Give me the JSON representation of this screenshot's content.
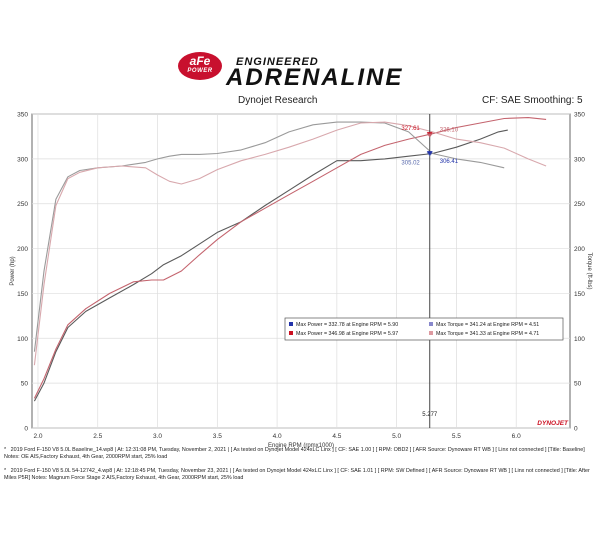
{
  "logo": {
    "badge_top": "aFe",
    "badge_bottom": "POWER",
    "tagline": "ENGINEERED",
    "name": "ADRENALINE"
  },
  "header": {
    "left": "Dynojet Research",
    "right": "CF: SAE Smoothing: 5"
  },
  "colors": {
    "baseline_power": "#5a5a5a",
    "baseline_torque": "#9a9a9a",
    "stage2_power": "#c4646e",
    "stage2_torque": "#d8a8ad",
    "cursor": "#333333",
    "blue_marker": "#2233aa",
    "red_marker": "#cc1122"
  },
  "chart_data": {
    "type": "line",
    "xlabel": "Engine RPM (rpmx1000)",
    "ylabel": "Power (hp)",
    "y2label": "Torque (ft-lbs)",
    "xlim": [
      1.95,
      6.45
    ],
    "ylim": [
      0,
      350
    ],
    "y2lim": [
      0,
      350
    ],
    "x_ticks": [
      "2.0",
      "2.5",
      "3.0",
      "3.5",
      "4.0",
      "4.5",
      "5.0",
      "5.5",
      "6.0"
    ],
    "y_ticks": [
      "0",
      "50",
      "100",
      "150",
      "200",
      "250",
      "300",
      "350"
    ],
    "grid": true,
    "series": [
      {
        "role": "baseline_power",
        "axis": "left",
        "x": [
          1.97,
          2.05,
          2.15,
          2.25,
          2.4,
          2.6,
          2.8,
          2.95,
          3.05,
          3.2,
          3.35,
          3.5,
          3.7,
          3.9,
          4.1,
          4.3,
          4.5,
          4.7,
          4.9,
          5.1,
          5.3,
          5.5,
          5.7,
          5.85,
          5.93
        ],
        "y": [
          30,
          50,
          85,
          112,
          130,
          145,
          160,
          172,
          182,
          192,
          205,
          218,
          230,
          248,
          265,
          282,
          298,
          298,
          300,
          303,
          306,
          313,
          322,
          330,
          332
        ]
      },
      {
        "role": "stage2_power",
        "axis": "left",
        "x": [
          1.97,
          2.05,
          2.15,
          2.25,
          2.4,
          2.6,
          2.8,
          2.95,
          3.05,
          3.2,
          3.35,
          3.5,
          3.7,
          3.9,
          4.1,
          4.3,
          4.5,
          4.7,
          4.9,
          5.1,
          5.3,
          5.5,
          5.7,
          5.9,
          6.1,
          6.25
        ],
        "y": [
          33,
          55,
          88,
          115,
          133,
          150,
          163,
          165,
          165,
          175,
          193,
          210,
          230,
          245,
          260,
          275,
          290,
          305,
          315,
          322,
          328,
          335,
          340,
          345,
          346,
          344
        ]
      },
      {
        "role": "baseline_torque",
        "axis": "right",
        "x": [
          1.97,
          2.05,
          2.15,
          2.25,
          2.35,
          2.5,
          2.7,
          2.9,
          3.0,
          3.1,
          3.2,
          3.35,
          3.5,
          3.7,
          3.9,
          4.1,
          4.3,
          4.5,
          4.7,
          4.9,
          5.1,
          5.3,
          5.5,
          5.7,
          5.9
        ],
        "y": [
          85,
          175,
          255,
          280,
          287,
          290,
          292,
          296,
          300,
          303,
          305,
          305,
          306,
          310,
          318,
          330,
          338,
          341,
          341,
          340,
          330,
          306,
          300,
          296,
          290
        ]
      },
      {
        "role": "stage2_torque",
        "axis": "right",
        "x": [
          1.97,
          2.05,
          2.15,
          2.25,
          2.35,
          2.5,
          2.7,
          2.9,
          3.0,
          3.1,
          3.2,
          3.35,
          3.5,
          3.7,
          3.9,
          4.1,
          4.3,
          4.5,
          4.7,
          4.9,
          5.1,
          5.3,
          5.5,
          5.7,
          5.9,
          6.1,
          6.25
        ],
        "y": [
          70,
          160,
          248,
          278,
          285,
          290,
          292,
          290,
          282,
          275,
          272,
          278,
          288,
          298,
          305,
          313,
          322,
          332,
          340,
          341,
          337,
          330,
          322,
          318,
          312,
          300,
          292
        ]
      }
    ],
    "cursor": {
      "x": 5.277,
      "label": "5.277"
    },
    "cursor_values": [
      {
        "value": "327.61",
        "y": 327.61,
        "color": "#cc1122",
        "side": "left",
        "dy": -4
      },
      {
        "value": "326.10",
        "y": 326.1,
        "color": "#c4646e",
        "side": "right",
        "dy": -4
      },
      {
        "value": "305.02",
        "y": 305.02,
        "color": "#5566aa",
        "side": "left",
        "dy": 10
      },
      {
        "value": "306.41",
        "y": 306.41,
        "color": "#2233aa",
        "side": "right",
        "dy": 10
      }
    ],
    "legend": {
      "position": "lower-right",
      "rows": [
        {
          "left_color": "#2233aa",
          "left": "Max Power = 332.78 at Engine RPM = 5.90",
          "right_color": "#8888cc",
          "right": "Max Torque = 341.24 at Engine RPM = 4.51"
        },
        {
          "left_color": "#cc1122",
          "left": "Max Power = 346.98 at Engine RPM = 5.97",
          "right_color": "#dd99a0",
          "right": "Max Torque = 341.33 at Engine RPM = 4.71"
        }
      ]
    },
    "brand": "DYNOJET"
  },
  "footnotes": [
    {
      "marker": "*",
      "text": "2019 Ford F-150 V8 5.0L Baseline_14.wp8 | At: 12:31:08 PM, Tuesday, November 2, 2021 | [ As tested on Dynojet Model 424xLC Linx ] [ CF: SAE 1.00 ] [ RPM: OBD2 ] [ AFR Source: Dynoware RT WB ] [ Linx not connected ] [Title: Baseline]  Notes: OE AIS,Factory Exhaust, 4th Gear, 2000RPM start, 25% load"
    },
    {
      "marker": "*",
      "text": "2019 Ford F-150 V8 5.0L 54-12742_4.wp8 | At: 12:18:45 PM, Tuesday, November 23, 2021 | [ As tested on Dynojet Model 424xLC Linx ] [ CF: SAE 1.01 ] [ RPM: SW Defined ] [ AFR Source: Dynoware RT WB ] [ Linx not connected ] [Title: After Miles P5R]  Notes: Magnum Force Stage 2  AIS,Factory Exhaust, 4th Gear, 2000RPM start, 25% load"
    }
  ]
}
